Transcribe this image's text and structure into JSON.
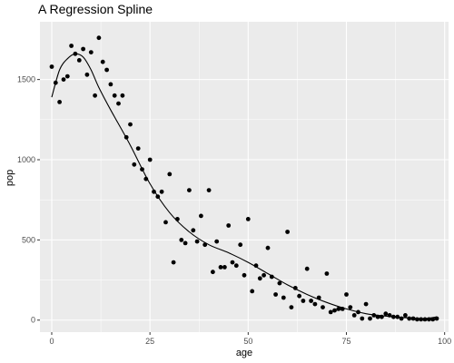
{
  "chart_data": {
    "type": "scatter",
    "title": "A Regression Spline",
    "xlabel": "age",
    "ylabel": "pop",
    "xlim": [
      -3,
      101
    ],
    "ylim": [
      -75,
      1860
    ],
    "xticks": [
      0,
      25,
      50,
      75,
      100
    ],
    "yticks": [
      0,
      500,
      1000,
      1500
    ],
    "grid": true,
    "legend": "none",
    "colors": {
      "panel": "#ebebeb",
      "grid": "#ffffff",
      "points": "#000000",
      "line": "#000000"
    },
    "series": [
      {
        "type": "scatter",
        "x": [
          0,
          1,
          2,
          3,
          4,
          5,
          6,
          7,
          8,
          9,
          10,
          11,
          12,
          13,
          14,
          15,
          16,
          17,
          18,
          19,
          20,
          21,
          22,
          23,
          24,
          25,
          26,
          27,
          28,
          29,
          30,
          31,
          32,
          33,
          34,
          35,
          36,
          37,
          38,
          39,
          40,
          41,
          42,
          43,
          44,
          45,
          46,
          47,
          48,
          49,
          50,
          51,
          52,
          53,
          54,
          55,
          56,
          57,
          58,
          59,
          60,
          61,
          62,
          63,
          64,
          65,
          66,
          67,
          68,
          69,
          70,
          71,
          72,
          73,
          74,
          75,
          76,
          77,
          78,
          79,
          80,
          81,
          82,
          83,
          84,
          85,
          86,
          87,
          88,
          89,
          90,
          91,
          92,
          93,
          94,
          95,
          96,
          97,
          98
        ],
        "y": [
          1580,
          1480,
          1360,
          1500,
          1520,
          1710,
          1660,
          1620,
          1690,
          1530,
          1670,
          1400,
          1760,
          1610,
          1560,
          1470,
          1400,
          1350,
          1400,
          1140,
          1220,
          970,
          1070,
          940,
          880,
          1000,
          800,
          770,
          800,
          610,
          910,
          360,
          630,
          500,
          480,
          810,
          560,
          490,
          650,
          470,
          810,
          300,
          490,
          330,
          330,
          590,
          360,
          340,
          470,
          280,
          630,
          180,
          340,
          260,
          280,
          450,
          270,
          160,
          230,
          140,
          550,
          80,
          200,
          150,
          120,
          320,
          120,
          100,
          140,
          80,
          290,
          50,
          60,
          70,
          70,
          160,
          80,
          30,
          50,
          10,
          100,
          10,
          30,
          20,
          20,
          40,
          30,
          20,
          20,
          10,
          30,
          10,
          10,
          5,
          5,
          5,
          5,
          5,
          10
        ]
      },
      {
        "type": "line",
        "name": "spline",
        "x": [
          0,
          2,
          4,
          6,
          8,
          10,
          12,
          15,
          20,
          25,
          30,
          35,
          40,
          45,
          50,
          55,
          60,
          65,
          70,
          75,
          80,
          85,
          90,
          95,
          98
        ],
        "y": [
          1390,
          1560,
          1630,
          1660,
          1640,
          1560,
          1450,
          1310,
          1090,
          850,
          670,
          550,
          470,
          420,
          360,
          290,
          220,
          160,
          110,
          70,
          40,
          25,
          15,
          10,
          20
        ]
      }
    ]
  }
}
